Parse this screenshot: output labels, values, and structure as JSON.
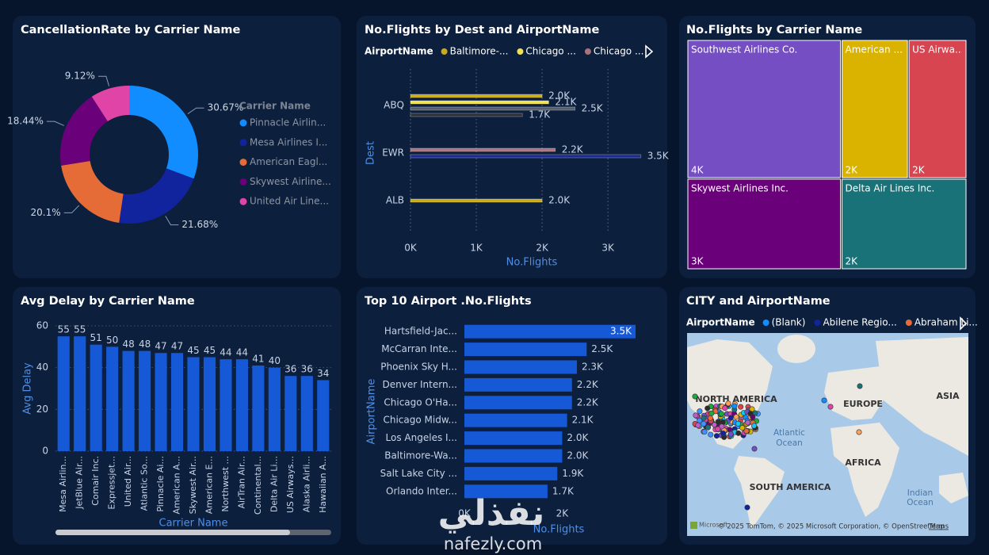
{
  "chart_data": [
    {
      "type": "donut",
      "title": "CancellationRate by Carrier Name",
      "legend_title": "Carrier Name",
      "categories": [
        "Pinnacle Airlin...",
        "Mesa Airlines I...",
        "American Eagl...",
        "Skywest Airline...",
        "United Air Line..."
      ],
      "values": [
        30.67,
        21.68,
        20.1,
        18.44,
        9.12
      ],
      "value_labels": [
        "30.67%",
        "21.68%",
        "20.1%",
        "18.44%",
        "9.12%"
      ],
      "colors": [
        "#118dff",
        "#12239e",
        "#e66c37",
        "#6b007b",
        "#e044a7"
      ]
    },
    {
      "type": "bar",
      "orientation": "horizontal",
      "title": "No.Flights by Dest and AirportName",
      "legend_title": "AirportName",
      "x_label": "No.Flights",
      "y_label": "Dest",
      "categories": [
        "ABQ",
        "EWR",
        "ALB"
      ],
      "series": [
        {
          "name": "Baltimore-...",
          "color": "#c9ab17",
          "values": [
            2000,
            null,
            2000
          ],
          "value_labels": [
            "2.0K",
            null,
            "2.0K"
          ]
        },
        {
          "name": "Chicago ...",
          "color": "#f2e14f",
          "values": [
            2100,
            null,
            null
          ],
          "value_labels": [
            "2.1K",
            null,
            null
          ]
        },
        {
          "name": "Chicago ...",
          "color": "#a8737f",
          "values": [
            null,
            2200,
            null
          ],
          "value_labels": [
            null,
            "2.2K",
            null
          ]
        },
        {
          "color": "#55606e",
          "values": [
            2500,
            null,
            null
          ],
          "value_labels": [
            "2.5K",
            null,
            null
          ]
        },
        {
          "color": "#2b2f38",
          "values": [
            1700,
            null,
            null
          ],
          "value_labels": [
            "1.7K",
            null,
            null
          ]
        },
        {
          "color": "#1b2a8c",
          "values": [
            null,
            3500,
            null
          ],
          "value_labels": [
            null,
            "3.5K",
            null
          ]
        }
      ],
      "xlim": [
        0,
        3600
      ],
      "xticks": [
        {
          "value": 0,
          "label": "0K"
        },
        {
          "value": 1000,
          "label": "1K"
        },
        {
          "value": 2000,
          "label": "2K"
        },
        {
          "value": 3000,
          "label": "3K"
        }
      ],
      "grid": true
    },
    {
      "type": "treemap",
      "title": "No.Flights by Carrier Name",
      "categories": [
        "Southwest Airlines Co.",
        "American ...",
        "US Airwa...",
        "Skywest Airlines Inc.",
        "Delta Air Lines Inc."
      ],
      "values": [
        4000,
        1740,
        1520,
        2630,
        2140
      ],
      "value_labels": [
        "4K",
        "2K",
        "2K",
        "3K",
        "2K"
      ],
      "colors": [
        "#744ec2",
        "#d9b300",
        "#d64550",
        "#6b007b",
        "#197278"
      ]
    },
    {
      "type": "bar",
      "orientation": "vertical",
      "title": "Avg Delay by Carrier Name",
      "x_label": "Carrier Name",
      "y_label": "Avg Delay",
      "categories": [
        "Mesa Airlin...",
        "JetBlue Air...",
        "Comair Inc.",
        "Expressjet...",
        "United Air...",
        "Atlantic So...",
        "Pinnacle Ai...",
        "American A...",
        "Skywest Air...",
        "American E...",
        "Northwest ...",
        "AirTran Air...",
        "Continental...",
        "Delta Air Li...",
        "US Airways...",
        "Alaska Airli...",
        "Hawaiian A..."
      ],
      "values": [
        55,
        55,
        51,
        50,
        48,
        48,
        47,
        47,
        45,
        45,
        44,
        44,
        41,
        40,
        36,
        36,
        34
      ],
      "color": "#1559d6",
      "ylim": [
        0,
        60
      ],
      "yticks": [
        0,
        20,
        40,
        60
      ],
      "grid": true
    },
    {
      "type": "bar",
      "orientation": "horizontal",
      "title": "Top 10 Airport .No.Flights",
      "x_label": "No.Flights",
      "y_label": "AirportName",
      "categories": [
        "Hartsfield-Jac...",
        "McCarran Inte...",
        "Phoenix Sky H...",
        "Denver Intern...",
        "Chicago O'Ha...",
        "Chicago Midw...",
        "Los Angeles I...",
        "Baltimore-Wa...",
        "Salt Lake City ...",
        "Orlando Inter..."
      ],
      "values": [
        3500,
        2500,
        2300,
        2200,
        2200,
        2100,
        2000,
        2000,
        1900,
        1700
      ],
      "value_labels": [
        "3.5K",
        "2.5K",
        "2.3K",
        "2.2K",
        "2.2K",
        "2.1K",
        "2.0K",
        "2.0K",
        "1.9K",
        "1.7K"
      ],
      "color": "#1559d6",
      "xlim": [
        0,
        3500
      ],
      "xticks": [
        {
          "value": 0,
          "label": "0K"
        },
        {
          "value": 2000,
          "label": "2K"
        }
      ],
      "grid": false
    },
    {
      "type": "map",
      "title": "CITY and AirportName",
      "legend_title": "AirportName",
      "series": [
        {
          "name": "(Blank)",
          "color": "#118dff"
        },
        {
          "name": "Abilene Regio...",
          "color": "#12239e"
        },
        {
          "name": "Abraham Li...",
          "color": "#e66c37"
        }
      ],
      "labels": [
        "NORTH AMERICA",
        "EUROPE",
        "ASIA",
        "Atlantic",
        "Ocean",
        "AFRICA",
        "SOUTH AMERICA",
        "Indian",
        "Ocean"
      ],
      "attribution": "© 2025 TomTom, © 2025 Microsoft Corporation, © OpenStreetMap",
      "terms": "Terms",
      "brand": "Microsoft"
    }
  ],
  "watermark": {
    "arabic": "نفذلي",
    "site": "nafezly.com"
  }
}
